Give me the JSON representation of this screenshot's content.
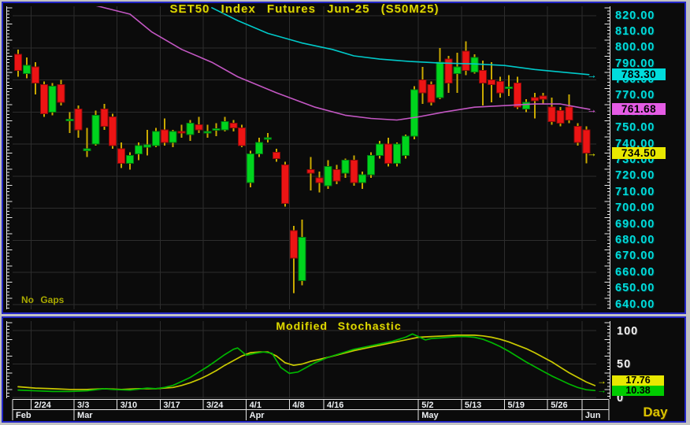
{
  "window": {
    "background": "#c2c2c2",
    "panel_border_color": "#2326c6",
    "panel_background": "#0b0b0b"
  },
  "main_chart": {
    "title": "SET50 Index Futures Jun-25 (S50M25)",
    "mode_label": "No Gaps",
    "y_axis": {
      "min": 640,
      "max": 820,
      "step": 10,
      "labels": [
        "820.00",
        "810.00",
        "800.00",
        "790.00",
        "780.00",
        "770.00",
        "760.00",
        "750.00",
        "740.00",
        "730.00",
        "720.00",
        "710.00",
        "700.00",
        "690.00",
        "680.00",
        "670.00",
        "660.00",
        "650.00",
        "640.00"
      ],
      "text_color": "#00dcdc"
    },
    "price_tags": [
      {
        "label": "783.30",
        "value": 783.3,
        "bg": "#00dcdc",
        "series": "long-moving-average"
      },
      {
        "label": "761.68",
        "value": 761.68,
        "bg": "#e55ce5",
        "series": "short-moving-average"
      },
      {
        "label": "734.50",
        "value": 734.5,
        "bg": "#e8e800",
        "series": "last-price"
      }
    ]
  },
  "stochastic": {
    "title": "Modified Stochastic",
    "y_axis": {
      "labels": [
        "100",
        "50",
        "0"
      ],
      "values": [
        100,
        50,
        0
      ],
      "text_color": "#f2f2f2"
    },
    "value_tags": [
      {
        "label": "17.76",
        "value": 17.76,
        "bg": "#e8e800",
        "series": "percent-d"
      },
      {
        "label": "10.38",
        "value": 10.38,
        "bg": "#00cc00",
        "series": "percent-k"
      }
    ]
  },
  "x_axis": {
    "weeks": [
      {
        "label": "2/24",
        "index": 2
      },
      {
        "label": "3/3",
        "index": 7
      },
      {
        "label": "3/10",
        "index": 12
      },
      {
        "label": "3/17",
        "index": 17
      },
      {
        "label": "3/24",
        "index": 22
      },
      {
        "label": "4/1",
        "index": 27
      },
      {
        "label": "4/8",
        "index": 32
      },
      {
        "label": "4/16",
        "index": 36
      },
      {
        "label": "5/2",
        "index": 47
      },
      {
        "label": "5/13",
        "index": 52
      },
      {
        "label": "5/19",
        "index": 57
      },
      {
        "label": "5/26",
        "index": 62
      }
    ],
    "extra_ticks": [
      66
    ],
    "months": [
      {
        "label": "Feb",
        "index": 0
      },
      {
        "label": "Mar",
        "index": 7
      },
      {
        "label": "Apr",
        "index": 27
      },
      {
        "label": "May",
        "index": 47
      },
      {
        "label": "Jun",
        "index": 66
      }
    ],
    "period_label": "Day"
  },
  "chart_data": [
    {
      "type": "candlestick",
      "name": "SET50 Index Futures Jun-25 (S50M25) daily",
      "panel": "main",
      "ylim": [
        640,
        820
      ],
      "up_color": "#00d41e",
      "down_color": "#ec1414",
      "wick_color": "#c9a900",
      "candles": [
        [
          796,
          799,
          782,
          786
        ],
        [
          784,
          794,
          781,
          789
        ],
        [
          788,
          791,
          771,
          778
        ],
        [
          777,
          779,
          757,
          759
        ],
        [
          760,
          778,
          758,
          776
        ],
        [
          777,
          780,
          764,
          766
        ],
        [
          755,
          760,
          747,
          755.5
        ],
        [
          762,
          764,
          744,
          749
        ],
        [
          736,
          750,
          732,
          737
        ],
        [
          740,
          761,
          739,
          758
        ],
        [
          762,
          765,
          749,
          751
        ],
        [
          757,
          759,
          737,
          739
        ],
        [
          737,
          741,
          725,
          728
        ],
        [
          728,
          735,
          724,
          733
        ],
        [
          734,
          741,
          730,
          739
        ],
        [
          738,
          749,
          733,
          739.5
        ],
        [
          739,
          750,
          738,
          748
        ],
        [
          749,
          756,
          739,
          741
        ],
        [
          741,
          749,
          738,
          748
        ],
        [
          748,
          752,
          744,
          747
        ],
        [
          746,
          755,
          742,
          753
        ],
        [
          752,
          757,
          747,
          749
        ],
        [
          747,
          752,
          744,
          748
        ],
        [
          749,
          753,
          745,
          749.5
        ],
        [
          749,
          757,
          748,
          754
        ],
        [
          753,
          755,
          748,
          750
        ],
        [
          750,
          752,
          738,
          739
        ],
        [
          716,
          736,
          713,
          734
        ],
        [
          734,
          744,
          732,
          741
        ],
        [
          743,
          747,
          741,
          744
        ],
        [
          735,
          737,
          729,
          731
        ],
        [
          727,
          729,
          701,
          703
        ],
        [
          686,
          689,
          647,
          669
        ],
        [
          655,
          693,
          652,
          682
        ],
        [
          724,
          732,
          711,
          722
        ],
        [
          719,
          723,
          710,
          716
        ],
        [
          714,
          730,
          712,
          726
        ],
        [
          724,
          727,
          715,
          717
        ],
        [
          722,
          731,
          719,
          730
        ],
        [
          730,
          733,
          714,
          716
        ],
        [
          716,
          723,
          712,
          721
        ],
        [
          721,
          735,
          719,
          733
        ],
        [
          733,
          742,
          731,
          740
        ],
        [
          740,
          744,
          726,
          728
        ],
        [
          728,
          741,
          726,
          740
        ],
        [
          733,
          746,
          731,
          745
        ],
        [
          745,
          776,
          743,
          774
        ],
        [
          780,
          788,
          765,
          772
        ],
        [
          777,
          779,
          764,
          766
        ],
        [
          769,
          800,
          768,
          791
        ],
        [
          793,
          795,
          772,
          778
        ],
        [
          784,
          797,
          772,
          788
        ],
        [
          798,
          804,
          783,
          786
        ],
        [
          785,
          796,
          784,
          794
        ],
        [
          786,
          792,
          764,
          778
        ],
        [
          780,
          791,
          766,
          777
        ],
        [
          779,
          782,
          769,
          772
        ],
        [
          775,
          783,
          770,
          775.5
        ],
        [
          778,
          782,
          762,
          763
        ],
        [
          762,
          768,
          760,
          766
        ],
        [
          769,
          772,
          756,
          767
        ],
        [
          770,
          772,
          765,
          768
        ],
        [
          763,
          769,
          752,
          754
        ],
        [
          761,
          763,
          751,
          753
        ],
        [
          763,
          771,
          753,
          755
        ],
        [
          751,
          753,
          739,
          741
        ],
        [
          749,
          751,
          728,
          734.5
        ]
      ]
    },
    {
      "type": "line",
      "name": "long-term moving average",
      "panel": "main",
      "color": "#00c9c9",
      "points": [
        [
          22.5,
          825
        ],
        [
          25.5,
          817
        ],
        [
          29,
          809
        ],
        [
          33,
          803
        ],
        [
          36.5,
          799
        ],
        [
          39,
          795
        ],
        [
          42,
          793
        ],
        [
          45.5,
          791.5
        ],
        [
          49,
          790.5
        ],
        [
          53,
          790
        ],
        [
          56.5,
          789
        ],
        [
          60,
          786.5
        ],
        [
          63,
          785
        ],
        [
          66.3,
          783.3
        ]
      ]
    },
    {
      "type": "line",
      "name": "short-term moving average",
      "panel": "main",
      "color": "#c357c3",
      "points": [
        [
          8.5,
          827
        ],
        [
          13,
          821
        ],
        [
          15.5,
          810
        ],
        [
          19,
          799
        ],
        [
          22.5,
          791
        ],
        [
          25.5,
          782
        ],
        [
          30,
          772
        ],
        [
          34.5,
          763
        ],
        [
          38,
          758
        ],
        [
          41,
          756
        ],
        [
          44,
          755
        ],
        [
          46.5,
          757
        ],
        [
          49.5,
          760
        ],
        [
          53,
          763
        ],
        [
          56.5,
          764
        ],
        [
          60,
          765
        ],
        [
          63,
          765
        ],
        [
          65,
          763
        ],
        [
          66.4,
          761.68
        ]
      ]
    },
    {
      "type": "line",
      "name": "stochastic %K",
      "panel": "stochastic",
      "color": "#00b400",
      "ylim": [
        0,
        100
      ],
      "points": [
        [
          0,
          11
        ],
        [
          2,
          10
        ],
        [
          4,
          9
        ],
        [
          6,
          9
        ],
        [
          8,
          10
        ],
        [
          10,
          13
        ],
        [
          11,
          12
        ],
        [
          13,
          11
        ],
        [
          15,
          14
        ],
        [
          16,
          13
        ],
        [
          17,
          15
        ],
        [
          18,
          18
        ],
        [
          19,
          24
        ],
        [
          20,
          30
        ],
        [
          21,
          38
        ],
        [
          22,
          46
        ],
        [
          23,
          55
        ],
        [
          24,
          64
        ],
        [
          25,
          72
        ],
        [
          25.5,
          74
        ],
        [
          26.5,
          63
        ],
        [
          27.5,
          66
        ],
        [
          28.5,
          68
        ],
        [
          29.5,
          66
        ],
        [
          30.5,
          45
        ],
        [
          31.5,
          36
        ],
        [
          32.5,
          38
        ],
        [
          33.5,
          45
        ],
        [
          34.5,
          52
        ],
        [
          36,
          60
        ],
        [
          37.5,
          66
        ],
        [
          39,
          72
        ],
        [
          40.5,
          76
        ],
        [
          42,
          80
        ],
        [
          43.5,
          84
        ],
        [
          45,
          90
        ],
        [
          45.8,
          95
        ],
        [
          46.5,
          91
        ],
        [
          47.3,
          86
        ],
        [
          48,
          88
        ],
        [
          49,
          89
        ],
        [
          50,
          90
        ],
        [
          51,
          91
        ],
        [
          52,
          91
        ],
        [
          53,
          90
        ],
        [
          54,
          87
        ],
        [
          55,
          82
        ],
        [
          56,
          76
        ],
        [
          57,
          69
        ],
        [
          58,
          61
        ],
        [
          59,
          53
        ],
        [
          60,
          46
        ],
        [
          61,
          39
        ],
        [
          62,
          32
        ],
        [
          63,
          26
        ],
        [
          64,
          20
        ],
        [
          65,
          15
        ],
        [
          66,
          11.5
        ],
        [
          67,
          10.38
        ]
      ]
    },
    {
      "type": "line",
      "name": "stochastic %D",
      "panel": "stochastic",
      "color": "#c9c900",
      "ylim": [
        0,
        100
      ],
      "points": [
        [
          0,
          16
        ],
        [
          2,
          14
        ],
        [
          4,
          13
        ],
        [
          6,
          12
        ],
        [
          8,
          12
        ],
        [
          10,
          13
        ],
        [
          12,
          12
        ],
        [
          14,
          13
        ],
        [
          16,
          13
        ],
        [
          18,
          15
        ],
        [
          19,
          18
        ],
        [
          20,
          22
        ],
        [
          21,
          27
        ],
        [
          22,
          33
        ],
        [
          23,
          40
        ],
        [
          24,
          48
        ],
        [
          25,
          55
        ],
        [
          26,
          62
        ],
        [
          27,
          67
        ],
        [
          28,
          68
        ],
        [
          29,
          68
        ],
        [
          30,
          62
        ],
        [
          31,
          52
        ],
        [
          32,
          48
        ],
        [
          33,
          50
        ],
        [
          34,
          54
        ],
        [
          36,
          60
        ],
        [
          37.5,
          65
        ],
        [
          39,
          70
        ],
        [
          40.5,
          74
        ],
        [
          42,
          78
        ],
        [
          43.5,
          82
        ],
        [
          45,
          86
        ],
        [
          46.5,
          90
        ],
        [
          48,
          91
        ],
        [
          49.5,
          92
        ],
        [
          51,
          93
        ],
        [
          53,
          93
        ],
        [
          54,
          92
        ],
        [
          55,
          90
        ],
        [
          56,
          87
        ],
        [
          57,
          83
        ],
        [
          58,
          78
        ],
        [
          59,
          73
        ],
        [
          60,
          67
        ],
        [
          61,
          60
        ],
        [
          62,
          53
        ],
        [
          63,
          45
        ],
        [
          64,
          37
        ],
        [
          65,
          30
        ],
        [
          66,
          23
        ],
        [
          67,
          17.76
        ]
      ]
    }
  ]
}
